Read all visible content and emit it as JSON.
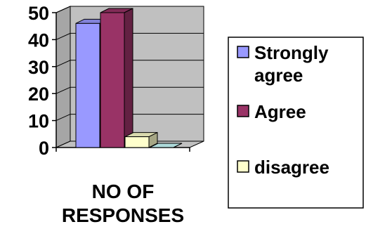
{
  "chart_data": {
    "type": "bar",
    "xlabel_lines": [
      "NO OF",
      "RESPONSES"
    ],
    "ylabel": "",
    "ylim": [
      0,
      50
    ],
    "yticks": [
      "0",
      "10",
      "20",
      "30",
      "40",
      "50"
    ],
    "grid": true,
    "legend_position": "right",
    "series": [
      {
        "name_lines": [
          "Strongly",
          "agree"
        ],
        "value": 46,
        "color": "#9999ff"
      },
      {
        "name_lines": [
          "Agree"
        ],
        "value": 50,
        "color": "#993366"
      },
      {
        "name_lines": [
          "disagree"
        ],
        "value": 4,
        "color": "#ffffcc"
      },
      {
        "name_lines": [
          ""
        ],
        "value": 0,
        "color": "#ccffff"
      }
    ]
  }
}
